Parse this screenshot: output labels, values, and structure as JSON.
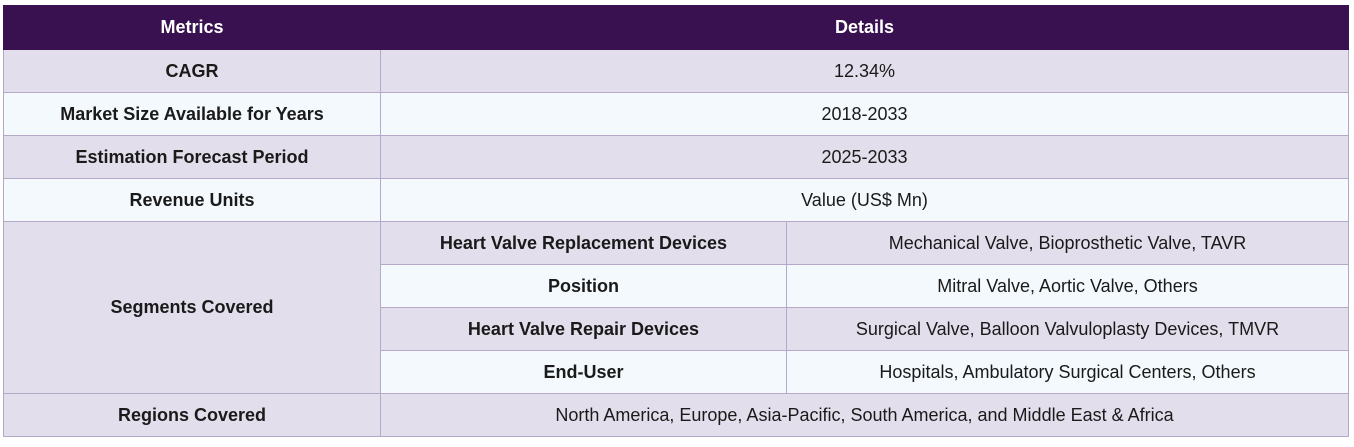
{
  "header": {
    "metrics": "Metrics",
    "details": "Details"
  },
  "rows": {
    "cagr": {
      "label": "CAGR",
      "value": "12.34%"
    },
    "market_size": {
      "label": "Market Size Available for Years",
      "value": "2018-2033"
    },
    "forecast": {
      "label": "Estimation Forecast Period",
      "value": "2025-2033"
    },
    "revenue": {
      "label": "Revenue Units",
      "value": "Value (US$ Mn)"
    },
    "segments": {
      "label": "Segments Covered",
      "items": [
        {
          "name": "Heart Valve Replacement Devices",
          "value": "Mechanical Valve, Bioprosthetic Valve, TAVR"
        },
        {
          "name": "Position",
          "value": "Mitral Valve, Aortic Valve, Others"
        },
        {
          "name": "Heart Valve Repair Devices",
          "value": "Surgical Valve, Balloon Valvuloplasty Devices, TMVR"
        },
        {
          "name": "End-User",
          "value": "Hospitals, Ambulatory Surgical Centers, Others"
        }
      ]
    },
    "regions": {
      "label": "Regions Covered",
      "value": "North America, Europe, Asia-Pacific, South America, and Middle East & Africa"
    }
  }
}
